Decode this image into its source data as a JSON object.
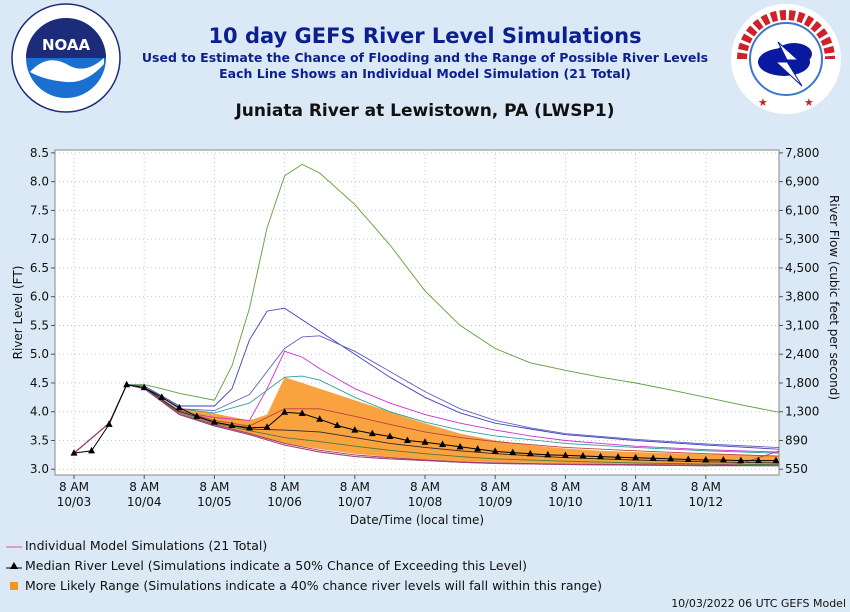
{
  "header": {
    "title": "10 day GEFS River Level Simulations",
    "subtitle1": "Used to Estimate the Chance of Flooding and the Range of Possible River Levels",
    "subtitle2": "Each Line Shows an Individual Model Simulation (21 Total)",
    "station": "Juniata River at Lewistown, PA (LWSP1)"
  },
  "logos": {
    "noaa_text": "NOAA",
    "noaa_ring": "NATIONAL OCEANIC AND ATMOSPHERIC ADMINISTRATION · U.S. DEPARTMENT OF COMMERCE",
    "nws_ring": "NATIONAL WEATHER SERVICE"
  },
  "chart_data": {
    "type": "line",
    "ylabel": "River Level (FT)",
    "y2label": "River Flow (cubic feet per second)",
    "xlabel": "Date/Time (local time)",
    "ylim": [
      2.9,
      8.55
    ],
    "yticks": [
      "8.5",
      "8.0",
      "7.5",
      "7.0",
      "6.5",
      "6.0",
      "5.5",
      "5.0",
      "4.5",
      "4.0",
      "3.5",
      "3.0"
    ],
    "y2ticks": [
      "7,800",
      "6,900",
      "6,100",
      "5,300",
      "4,500",
      "3,800",
      "3,100",
      "2,400",
      "1,800",
      "1,300",
      "890",
      "550"
    ],
    "xlim_days": [
      0,
      10.25
    ],
    "xticks": [
      {
        "time": "8 AM",
        "date": "10/03"
      },
      {
        "time": "8 AM",
        "date": "10/04"
      },
      {
        "time": "8 AM",
        "date": "10/05"
      },
      {
        "time": "8 AM",
        "date": "10/06"
      },
      {
        "time": "8 AM",
        "date": "10/07"
      },
      {
        "time": "8 AM",
        "date": "10/08"
      },
      {
        "time": "8 AM",
        "date": "10/09"
      },
      {
        "time": "8 AM",
        "date": "10/10"
      },
      {
        "time": "8 AM",
        "date": "10/11"
      },
      {
        "time": "8 AM",
        "date": "10/12"
      }
    ],
    "grid": true,
    "median": {
      "name": "Median River Level",
      "x": [
        0.0,
        0.25,
        0.5,
        0.75,
        1.0,
        1.25,
        1.5,
        1.75,
        2.0,
        2.25,
        2.5,
        2.75,
        3.0,
        3.25,
        3.5,
        3.75,
        4.0,
        4.25,
        4.5,
        4.75,
        5.0,
        5.25,
        5.5,
        5.75,
        6.0,
        6.25,
        6.5,
        6.75,
        7.0,
        7.25,
        7.5,
        7.75,
        8.0,
        8.25,
        8.5,
        8.75,
        9.0,
        9.25,
        9.5,
        9.75,
        10.0
      ],
      "y": [
        3.28,
        3.32,
        3.78,
        4.47,
        4.42,
        4.25,
        4.07,
        3.92,
        3.82,
        3.76,
        3.72,
        3.73,
        3.99,
        3.97,
        3.87,
        3.76,
        3.68,
        3.62,
        3.57,
        3.5,
        3.47,
        3.43,
        3.39,
        3.35,
        3.31,
        3.29,
        3.27,
        3.25,
        3.24,
        3.23,
        3.22,
        3.21,
        3.2,
        3.19,
        3.18,
        3.17,
        3.16,
        3.16,
        3.15,
        3.15,
        3.15
      ]
    },
    "range": {
      "name": "More Likely Range",
      "x": [
        1.5,
        2.0,
        2.5,
        2.75,
        3.0,
        3.5,
        4.0,
        4.5,
        5.0,
        5.5,
        6.0,
        6.5,
        7.0,
        7.5,
        8.0,
        8.5,
        9.0,
        9.5,
        10.0,
        10.25
      ],
      "upper": [
        4.07,
        3.97,
        3.85,
        3.95,
        4.6,
        4.4,
        4.2,
        4.0,
        3.8,
        3.62,
        3.5,
        3.42,
        3.36,
        3.32,
        3.3,
        3.28,
        3.26,
        3.25,
        3.23,
        3.22
      ],
      "lower": [
        4.02,
        3.78,
        3.62,
        3.52,
        3.45,
        3.35,
        3.27,
        3.21,
        3.17,
        3.14,
        3.12,
        3.11,
        3.1,
        3.09,
        3.08,
        3.08,
        3.07,
        3.07,
        3.06,
        3.06
      ]
    },
    "series": [
      {
        "color": "#5f9e3a",
        "x": [
          0,
          0.5,
          0.75,
          1.0,
          1.25,
          1.5,
          2.0,
          2.25,
          2.5,
          2.75,
          3.0,
          3.25,
          3.5,
          4.0,
          4.5,
          5.0,
          5.5,
          6.0,
          6.5,
          7.0,
          7.5,
          8.0,
          8.5,
          9.0,
          9.5,
          10.0,
          10.25
        ],
        "y": [
          3.28,
          3.8,
          4.47,
          4.47,
          4.4,
          4.32,
          4.2,
          4.8,
          5.8,
          7.2,
          8.1,
          8.3,
          8.15,
          7.6,
          6.9,
          6.1,
          5.5,
          5.1,
          4.85,
          4.72,
          4.6,
          4.5,
          4.38,
          4.25,
          4.12,
          4.0,
          3.95
        ]
      },
      {
        "color": "#4040c0",
        "x": [
          0,
          0.5,
          0.75,
          1.0,
          1.5,
          2.0,
          2.25,
          2.5,
          2.75,
          3.0,
          3.25,
          3.5,
          4.0,
          4.5,
          5.0,
          5.5,
          6.0,
          6.5,
          7.0,
          7.5,
          8.0,
          9.0,
          10.0,
          10.25
        ],
        "y": [
          3.28,
          3.8,
          4.47,
          4.45,
          4.1,
          4.1,
          4.4,
          5.25,
          5.75,
          5.8,
          5.6,
          5.4,
          5.0,
          4.6,
          4.25,
          3.98,
          3.8,
          3.7,
          3.6,
          3.55,
          3.5,
          3.42,
          3.35,
          3.34
        ]
      },
      {
        "color": "#6060c0",
        "x": [
          0,
          0.5,
          0.75,
          1.0,
          1.5,
          2.0,
          2.5,
          3.0,
          3.25,
          3.5,
          4.0,
          4.5,
          5.0,
          5.5,
          6.0,
          6.5,
          7.0,
          7.5,
          8.0,
          9.0,
          10.0,
          10.25
        ],
        "y": [
          3.28,
          3.8,
          4.47,
          4.45,
          4.05,
          4.02,
          4.3,
          5.1,
          5.3,
          5.32,
          5.05,
          4.7,
          4.35,
          4.05,
          3.85,
          3.72,
          3.62,
          3.57,
          3.52,
          3.44,
          3.38,
          3.37
        ]
      },
      {
        "color": "#d030d0",
        "x": [
          0,
          0.5,
          0.75,
          1.0,
          1.5,
          2.0,
          2.5,
          2.75,
          3.0,
          3.25,
          3.5,
          4.0,
          4.5,
          5.0,
          5.5,
          6.0,
          6.5,
          7.0,
          7.5,
          8.0,
          9.0,
          10.0,
          10.25
        ],
        "y": [
          3.28,
          3.8,
          4.47,
          4.42,
          4.0,
          3.9,
          3.85,
          4.4,
          5.05,
          4.95,
          4.75,
          4.4,
          4.15,
          3.95,
          3.8,
          3.68,
          3.58,
          3.5,
          3.45,
          3.4,
          3.34,
          3.3,
          3.29
        ]
      },
      {
        "color": "#30a0a0",
        "x": [
          0,
          0.5,
          0.75,
          1.0,
          1.5,
          2.0,
          2.5,
          3.0,
          3.25,
          3.5,
          4.0,
          4.5,
          5.0,
          5.5,
          6.0,
          7.0,
          8.0,
          9.0,
          10.0,
          10.25
        ],
        "y": [
          3.28,
          3.8,
          4.47,
          4.45,
          4.05,
          3.98,
          4.15,
          4.6,
          4.62,
          4.55,
          4.25,
          4.0,
          3.82,
          3.68,
          3.58,
          3.45,
          3.38,
          3.32,
          3.28,
          3.27
        ]
      },
      {
        "color": "#c04040",
        "x": [
          0,
          0.5,
          0.75,
          1.0,
          1.5,
          2.0,
          2.5,
          3.0,
          3.5,
          4.0,
          4.5,
          5.0,
          5.5,
          6.0,
          7.0,
          8.0,
          9.0,
          10.0,
          10.25
        ],
        "y": [
          3.28,
          3.8,
          4.47,
          4.42,
          4.02,
          3.85,
          3.75,
          4.05,
          4.05,
          3.92,
          3.78,
          3.65,
          3.55,
          3.48,
          3.38,
          3.32,
          3.27,
          3.23,
          3.22
        ]
      },
      {
        "color": "#2a2a2a",
        "x": [
          0,
          0.5,
          0.75,
          1.0,
          1.5,
          2.0,
          2.5,
          3.0,
          3.5,
          4.0,
          4.5,
          5.0,
          5.5,
          6.0,
          7.0,
          8.0,
          9.0,
          10.0,
          10.25
        ],
        "y": [
          3.28,
          3.8,
          4.47,
          4.42,
          4.0,
          3.82,
          3.7,
          3.68,
          3.65,
          3.55,
          3.45,
          3.38,
          3.32,
          3.27,
          3.2,
          3.16,
          3.13,
          3.11,
          3.1
        ]
      },
      {
        "color": "#4a7a3a",
        "x": [
          0,
          0.5,
          0.75,
          1.0,
          1.5,
          2.0,
          2.5,
          3.0,
          3.5,
          4.0,
          4.5,
          5.0,
          5.5,
          6.0,
          7.0,
          8.0,
          9.0,
          10.0,
          10.25
        ],
        "y": [
          3.28,
          3.8,
          4.47,
          4.4,
          3.98,
          3.8,
          3.67,
          3.55,
          3.48,
          3.4,
          3.33,
          3.27,
          3.22,
          3.18,
          3.14,
          3.11,
          3.09,
          3.08,
          3.08
        ]
      },
      {
        "color": "#a03060",
        "x": [
          0,
          0.5,
          0.75,
          1.0,
          1.5,
          2.0,
          2.5,
          3.0,
          3.5,
          4.0,
          4.5,
          5.0,
          5.5,
          6.0,
          7.0,
          8.0,
          9.0,
          10.0,
          10.25
        ],
        "y": [
          3.28,
          3.8,
          4.47,
          4.4,
          3.96,
          3.78,
          3.62,
          3.45,
          3.33,
          3.25,
          3.2,
          3.16,
          3.13,
          3.11,
          3.09,
          3.08,
          3.07,
          3.06,
          3.06
        ]
      },
      {
        "color": "#5050a0",
        "x": [
          0,
          0.5,
          0.75,
          1.0,
          1.5,
          2.0,
          2.5,
          3.0,
          3.5,
          4.0,
          4.5,
          5.0,
          5.5,
          6.0,
          7.0,
          8.0,
          9.0,
          10.0,
          10.25
        ],
        "y": [
          3.28,
          3.8,
          4.47,
          4.4,
          3.95,
          3.76,
          3.6,
          3.42,
          3.3,
          3.22,
          3.18,
          3.15,
          3.12,
          3.1,
          3.08,
          3.07,
          3.06,
          3.06,
          3.05
        ]
      },
      {
        "color": "#b04070",
        "x": [
          0,
          0.5,
          0.75,
          1.0,
          1.5,
          2.0,
          2.5,
          3.0,
          3.5,
          4.0,
          4.5,
          5.0,
          5.5,
          6.0,
          7.0,
          8.0,
          9.0,
          9.5,
          10.0,
          10.25
        ],
        "y": [
          3.28,
          3.8,
          4.47,
          4.4,
          3.95,
          3.75,
          3.6,
          3.42,
          3.3,
          3.22,
          3.18,
          3.15,
          3.12,
          3.1,
          3.08,
          3.07,
          3.06,
          3.1,
          3.3,
          3.42
        ]
      }
    ]
  },
  "legend": {
    "individual": "Individual Model Simulations (21 Total)",
    "median": "Median River Level (Simulations indicate a 50% Chance of Exceeding this Level)",
    "range": "More Likely Range (Simulations indicate a 40% chance river levels will fall within this range)"
  },
  "colors": {
    "range_fill": "#f7931e",
    "title": "#0c1f8f"
  },
  "footer": "10/03/2022 06 UTC GEFS Model"
}
